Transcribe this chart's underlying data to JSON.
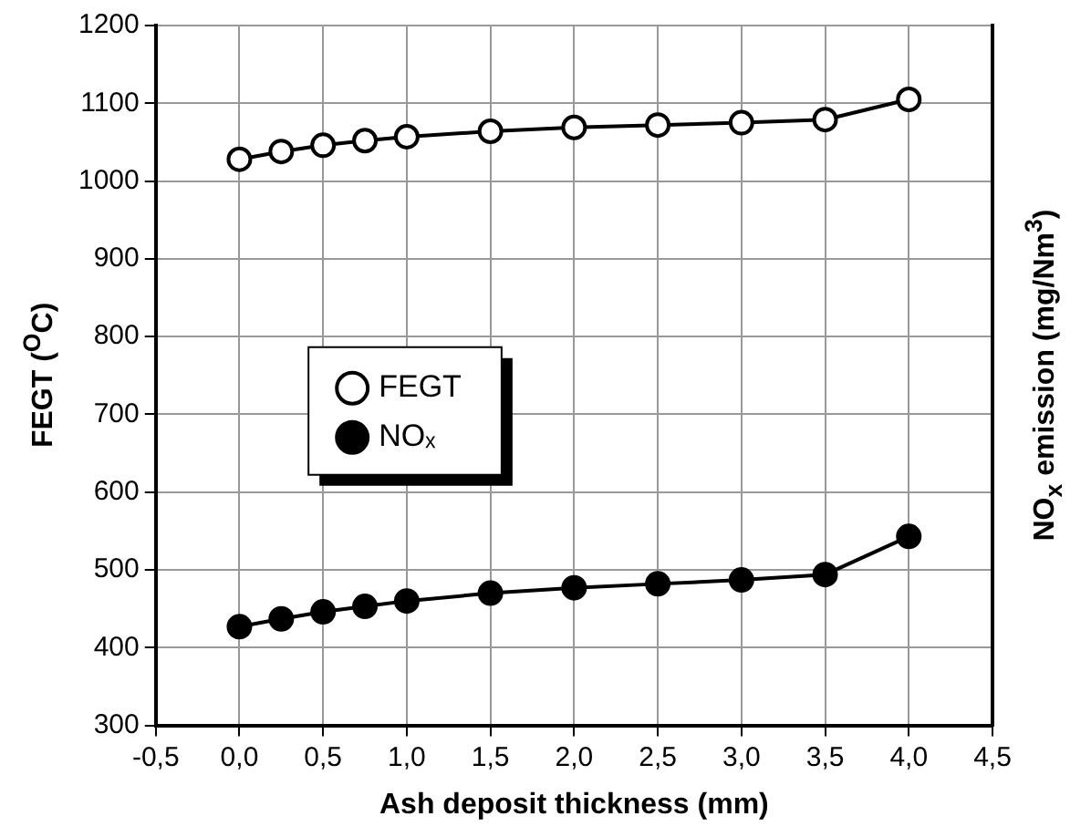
{
  "chart_data": {
    "type": "line",
    "xlabel": "Ash deposit thickness (mm)",
    "ylabel": "FEGT ($^{O}$C)",
    "y2label": "NO$_{x}$ emission (mg/Nm$^{3}$)",
    "x": [
      0,
      0.25,
      0.5,
      0.75,
      1,
      1.5,
      2,
      2.5,
      3,
      3.5,
      4
    ],
    "series": [
      {
        "name": "FEGT",
        "color": "#000000",
        "marker": "open-circle",
        "values": [
          1028,
          1038,
          1046,
          1052,
          1057,
          1064,
          1069,
          1072,
          1075,
          1079,
          1105
        ]
      },
      {
        "name": "NOₓ",
        "color": "#000000",
        "values": [
          427,
          437,
          446,
          453,
          460,
          470,
          477,
          482,
          487,
          494,
          543
        ]
      }
    ],
    "xlim": [
      -0.5,
      4.5
    ],
    "xticks": [
      {
        "value": -0.5,
        "label": "-0,5"
      },
      {
        "value": 0,
        "label": "0,0"
      },
      {
        "value": 0.5,
        "label": "0,5"
      },
      {
        "value": 1,
        "label": "1,0"
      },
      {
        "value": 1.5,
        "label": "1,5"
      },
      {
        "value": 2,
        "label": "2,0"
      },
      {
        "value": 2.5,
        "label": "2,5"
      },
      {
        "value": 3,
        "label": "3,0"
      },
      {
        "value": 3.5,
        "label": "3,5"
      },
      {
        "value": 4,
        "label": "4,0"
      },
      {
        "value": 4.5,
        "label": "4,5"
      }
    ],
    "ylim": [
      300,
      1200
    ],
    "yticks": [
      300,
      400,
      500,
      600,
      700,
      800,
      900,
      1000,
      1100,
      1200
    ],
    "grid": true,
    "legend": "left",
    "marker": "circle",
    "line_style": "solid"
  }
}
